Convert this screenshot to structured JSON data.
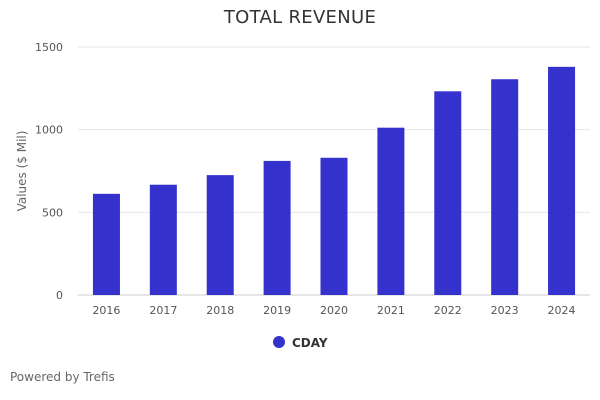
{
  "page": {
    "credit": "Powered by Trefis"
  },
  "chart_data": {
    "type": "bar",
    "title": "TOTAL REVENUE",
    "xlabel": "",
    "ylabel": "Values ($ Mil)",
    "categories": [
      "2016",
      "2017",
      "2018",
      "2019",
      "2020",
      "2021",
      "2022",
      "2023",
      "2024"
    ],
    "series": [
      {
        "name": "CDAY",
        "color": "#3431cc",
        "values": [
          612,
          667,
          725,
          811,
          830,
          1012,
          1232,
          1305,
          1380
        ]
      }
    ],
    "ylim": [
      0,
      1500
    ],
    "yticks": [
      0,
      500,
      1000,
      1500
    ],
    "grid": true,
    "legend": "bottom"
  }
}
